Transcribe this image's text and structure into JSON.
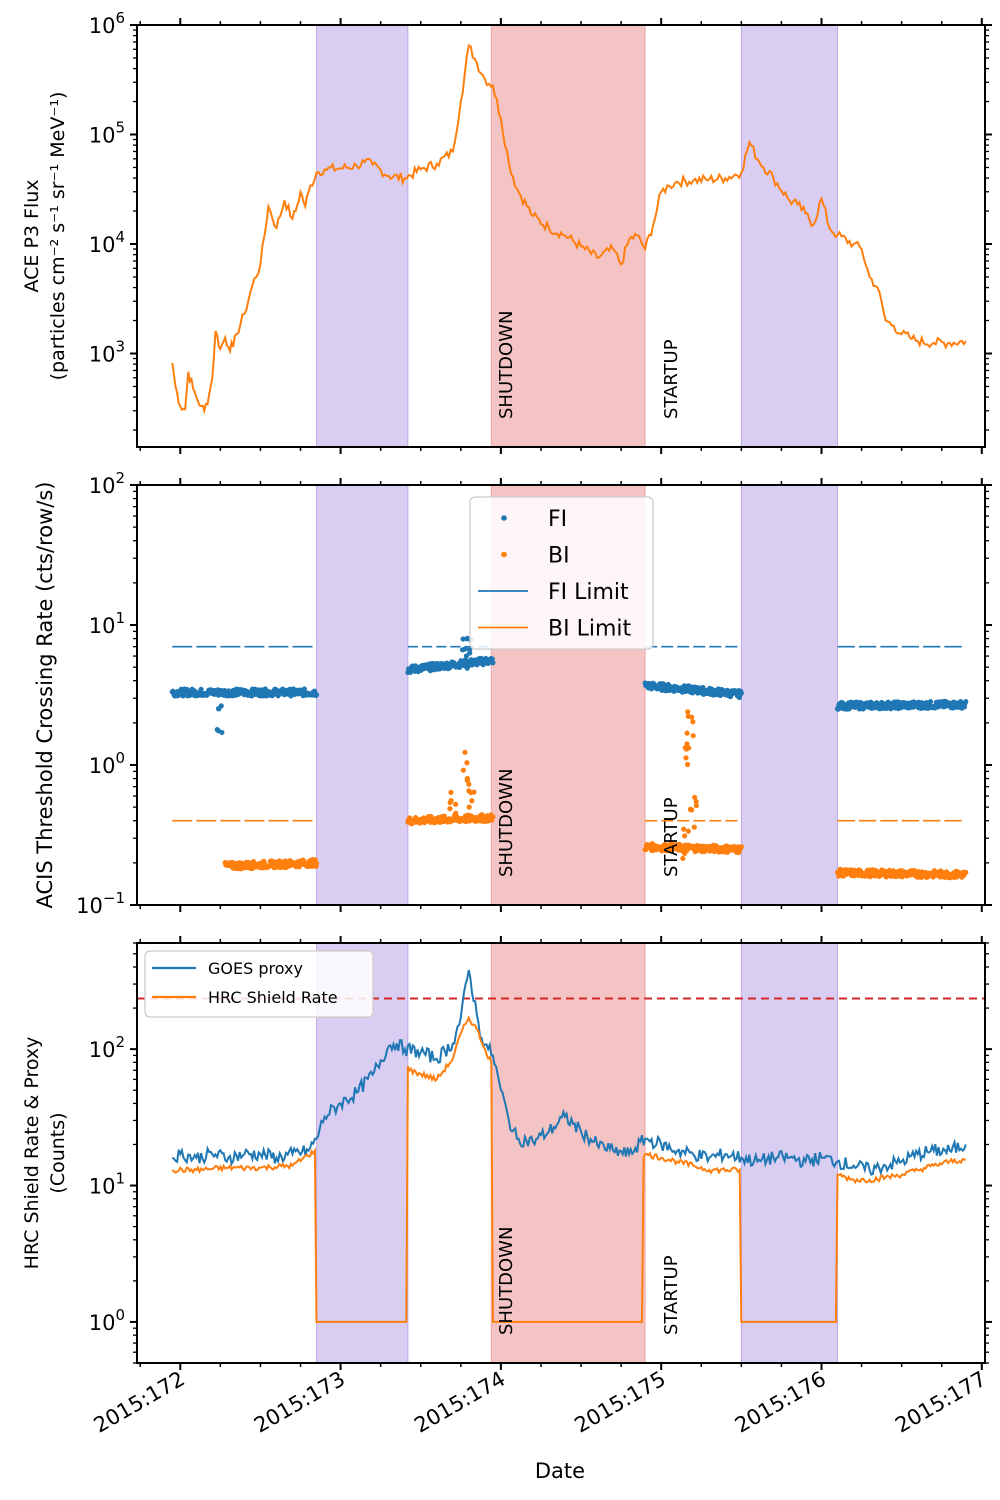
{
  "figure": {
    "xlabel": "Date",
    "x_tick_labels": [
      "2015:172",
      "2015:173",
      "2015:174",
      "2015:175",
      "2015:176",
      "2015:177"
    ],
    "x_ticks_days": [
      172,
      173,
      174,
      175,
      176,
      177
    ],
    "xlim": [
      171.73,
      177.02
    ],
    "shaded_bands": [
      {
        "type": "perigee",
        "x0": 172.85,
        "x1": 173.42,
        "color": "#9370db"
      },
      {
        "type": "shutdown",
        "x0": 173.94,
        "x1": 174.9,
        "color": "#e57373"
      },
      {
        "type": "perigee",
        "x0": 175.5,
        "x1": 176.1,
        "color": "#9370db"
      }
    ],
    "annotations": [
      {
        "text": "SHUTDOWN",
        "x": 174.02
      },
      {
        "text": "STARTUP",
        "x": 175.05
      }
    ],
    "colors": {
      "blue": "#1f77b4",
      "orange": "#ff7f0e",
      "red": "#d62728"
    }
  },
  "chart_data": [
    {
      "type": "line",
      "ylabel_line1": "ACE P3 Flux",
      "ylabel_line2": "(particles cm⁻² s⁻¹ sr⁻¹ MeV⁻¹)",
      "yscale": "log",
      "ylim": [
        140,
        1000000
      ],
      "y_tick_labels": [
        {
          "value": 1000,
          "base": "10",
          "exp": "3"
        },
        {
          "value": 10000,
          "base": "10",
          "exp": "4"
        },
        {
          "value": 100000,
          "base": "10",
          "exp": "5"
        },
        {
          "value": 1000000,
          "base": "10",
          "exp": "6"
        }
      ],
      "series": [
        {
          "color": "#ff7f0e",
          "x": [
            171.95,
            171.97,
            172.0,
            172.03,
            172.05,
            172.08,
            172.1,
            172.13,
            172.15,
            172.18,
            172.2,
            172.22,
            172.25,
            172.28,
            172.3,
            172.33,
            172.35,
            172.4,
            172.45,
            172.5,
            172.55,
            172.6,
            172.65,
            172.7,
            172.72,
            172.75,
            172.78,
            172.8,
            172.85,
            172.9,
            173.0,
            173.1,
            173.15,
            173.2,
            173.3,
            173.4,
            173.5,
            173.6,
            173.7,
            173.75,
            173.8,
            173.85,
            173.9,
            173.95,
            174.0,
            174.05,
            174.1,
            174.2,
            174.3,
            174.4,
            174.5,
            174.6,
            174.7,
            174.75,
            174.8,
            174.85,
            174.9,
            174.95,
            175.0,
            175.05,
            175.1,
            175.2,
            175.3,
            175.4,
            175.5,
            175.55,
            175.6,
            175.7,
            175.8,
            175.85,
            175.9,
            175.95,
            176.0,
            176.05,
            176.1,
            176.2,
            176.25,
            176.3,
            176.35,
            176.4,
            176.45,
            176.5,
            176.55,
            176.6,
            176.7,
            176.8,
            176.9
          ],
          "y": [
            820,
            500,
            330,
            310,
            680,
            480,
            400,
            330,
            300,
            420,
            600,
            1600,
            1100,
            1400,
            1150,
            1150,
            1500,
            2300,
            4200,
            6500,
            22000,
            14000,
            25000,
            17000,
            20000,
            30000,
            22000,
            30000,
            45000,
            48000,
            49000,
            52000,
            56000,
            53000,
            42000,
            40000,
            48000,
            54000,
            70000,
            200000,
            650000,
            450000,
            320000,
            280000,
            140000,
            55000,
            32000,
            18000,
            14000,
            12000,
            9500,
            7500,
            9000,
            6500,
            11000,
            12000,
            9000,
            15000,
            30000,
            34000,
            37000,
            38000,
            39000,
            40000,
            45000,
            85000,
            60000,
            40000,
            25000,
            23000,
            19000,
            15000,
            26000,
            14000,
            12000,
            10000,
            9000,
            5000,
            4000,
            2000,
            1800,
            1500,
            1400,
            1300,
            1250,
            1250,
            1300
          ]
        }
      ]
    },
    {
      "type": "scatter",
      "ylabel": "ACIS Threshold Crossing Rate (cts/row/s)",
      "yscale": "log",
      "ylim": [
        0.1,
        100
      ],
      "y_tick_labels": [
        {
          "value": 0.1,
          "base": "10",
          "exp": "−1"
        },
        {
          "value": 1,
          "base": "10",
          "exp": "0"
        },
        {
          "value": 10,
          "base": "10",
          "exp": "1"
        },
        {
          "value": 100,
          "base": "10",
          "exp": "2"
        }
      ],
      "legend": [
        "FI",
        "BI",
        "FI Limit",
        "BI Limit"
      ],
      "series": [
        {
          "name": "FI",
          "color": "#1f77b4",
          "segments": [
            {
              "x0": 171.95,
              "x1": 172.85,
              "y0": 3.3,
              "y1": 3.3
            },
            {
              "x0": 173.42,
              "x1": 173.95,
              "y0": 4.8,
              "y1": 5.6
            },
            {
              "x0": 174.9,
              "x1": 175.5,
              "y0": 3.7,
              "y1": 3.2
            },
            {
              "x0": 176.1,
              "x1": 176.9,
              "y0": 2.65,
              "y1": 2.7
            }
          ],
          "spikes": [
            {
              "x": 173.78,
              "y": 10.5
            },
            {
              "x": 173.8,
              "y": 8.2
            },
            {
              "x": 172.25,
              "y": 2.7
            }
          ]
        },
        {
          "name": "BI",
          "color": "#ff7f0e",
          "segments": [
            {
              "x0": 172.28,
              "x1": 172.85,
              "y0": 0.19,
              "y1": 0.2
            },
            {
              "x0": 173.42,
              "x1": 173.95,
              "y0": 0.4,
              "y1": 0.42
            },
            {
              "x0": 174.9,
              "x1": 175.5,
              "y0": 0.26,
              "y1": 0.25
            },
            {
              "x0": 176.1,
              "x1": 176.9,
              "y0": 0.17,
              "y1": 0.165
            }
          ],
          "spikes": [
            {
              "x": 173.78,
              "y": 1.25
            },
            {
              "x": 173.82,
              "y": 0.85
            },
            {
              "x": 173.7,
              "y": 0.7
            },
            {
              "x": 175.18,
              "y": 2.4
            },
            {
              "x": 175.17,
              "y": 1.7
            },
            {
              "x": 175.2,
              "y": 0.6
            },
            {
              "x": 175.15,
              "y": 0.35
            }
          ]
        },
        {
          "name": "FI Limit",
          "color": "#1f77b4",
          "value": 7.0,
          "ranges": [
            [
              171.95,
              172.85
            ],
            [
              173.42,
              173.95
            ],
            [
              174.9,
              175.5
            ],
            [
              176.1,
              176.9
            ]
          ]
        },
        {
          "name": "BI Limit",
          "color": "#ff7f0e",
          "value": 0.4,
          "ranges": [
            [
              171.95,
              172.85
            ],
            [
              173.42,
              173.95
            ],
            [
              174.9,
              175.5
            ],
            [
              176.1,
              176.9
            ]
          ]
        }
      ]
    },
    {
      "type": "line",
      "ylabel_line1": "HRC Shield Rate & Proxy",
      "ylabel_line2": "(Counts)",
      "yscale": "log",
      "ylim": [
        0.5,
        600
      ],
      "y_tick_labels": [
        {
          "value": 1,
          "base": "10",
          "exp": "0"
        },
        {
          "value": 10,
          "base": "10",
          "exp": "1"
        },
        {
          "value": 100,
          "base": "10",
          "exp": "2"
        }
      ],
      "hline": {
        "value": 235,
        "color": "#d62728",
        "style": "dashed"
      },
      "legend": [
        "GOES proxy",
        "HRC Shield Rate"
      ],
      "series": [
        {
          "name": "GOES proxy",
          "color": "#1f77b4",
          "x": [
            171.95,
            172.0,
            172.1,
            172.2,
            172.3,
            172.4,
            172.5,
            172.6,
            172.7,
            172.8,
            172.85,
            172.9,
            173.0,
            173.1,
            173.2,
            173.3,
            173.35,
            173.4,
            173.5,
            173.6,
            173.7,
            173.75,
            173.8,
            173.85,
            173.88,
            173.92,
            173.95,
            174.0,
            174.05,
            174.1,
            174.2,
            174.3,
            174.4,
            174.5,
            174.6,
            174.7,
            174.8,
            174.9,
            175.0,
            175.1,
            175.2,
            175.3,
            175.4,
            175.5,
            175.6,
            175.7,
            175.8,
            175.9,
            176.0,
            176.1,
            176.2,
            176.3,
            176.4,
            176.5,
            176.6,
            176.7,
            176.8,
            176.9
          ],
          "y": [
            16,
            17,
            16,
            17,
            16,
            17,
            17,
            16,
            17,
            18,
            22,
            32,
            40,
            48,
            65,
            105,
            110,
            100,
            95,
            85,
            110,
            170,
            380,
            180,
            120,
            100,
            90,
            50,
            30,
            22,
            21,
            25,
            32,
            25,
            20,
            18,
            17,
            22,
            20,
            18,
            17,
            16,
            17,
            16,
            15,
            16,
            16,
            15,
            16,
            15,
            14,
            13,
            14,
            15,
            17,
            18,
            18,
            20
          ]
        },
        {
          "name": "HRC Shield Rate",
          "color": "#ff7f0e",
          "x": [
            171.95,
            172.1,
            172.3,
            172.5,
            172.7,
            172.84,
            172.85,
            172.86,
            173.41,
            173.42,
            173.43,
            173.6,
            173.7,
            173.75,
            173.8,
            173.85,
            173.9,
            173.94,
            173.95,
            174.88,
            174.89,
            174.9,
            175.0,
            175.1,
            175.2,
            175.3,
            175.49,
            175.5,
            176.09,
            176.1,
            176.2,
            176.3,
            176.4,
            176.5,
            176.6,
            176.7,
            176.8,
            176.9
          ],
          "y": [
            13,
            13,
            13.5,
            13.5,
            14,
            18,
            1,
            1,
            1,
            75,
            70,
            60,
            85,
            130,
            170,
            140,
            100,
            80,
            1,
            1,
            16,
            17,
            16,
            15,
            14,
            13,
            13,
            1,
            1,
            12,
            11,
            11,
            11.5,
            12,
            13,
            14,
            15,
            15.5
          ]
        }
      ]
    }
  ]
}
